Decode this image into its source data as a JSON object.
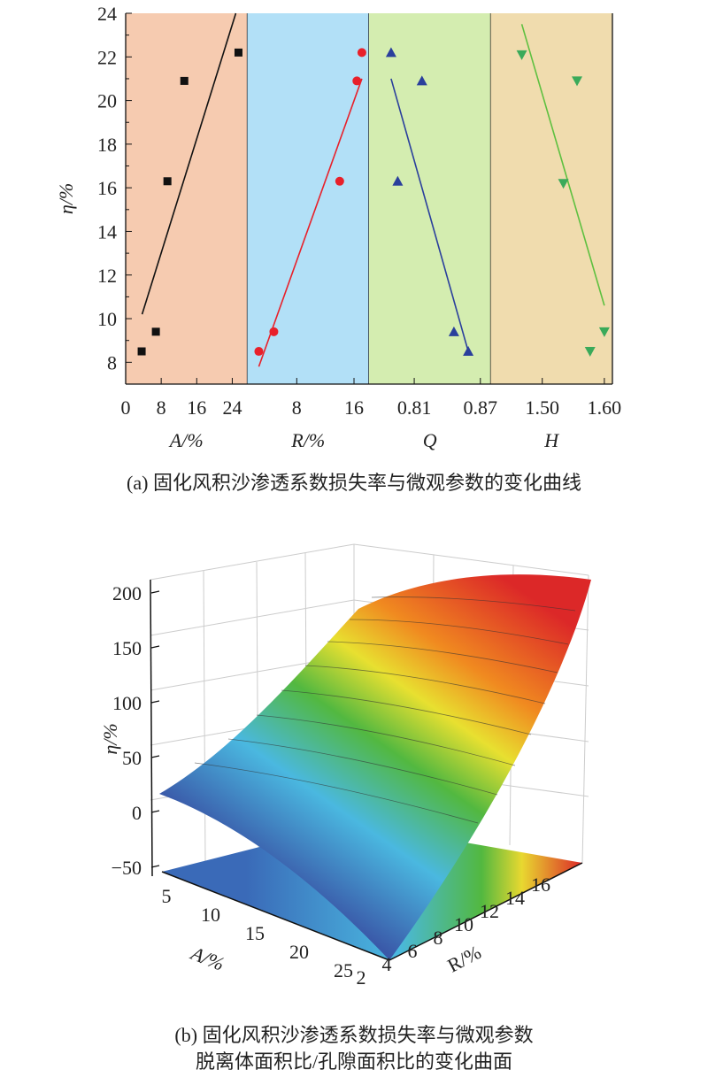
{
  "chart_data": [
    {
      "type": "scatter",
      "caption": "(a)  固化风积沙渗透系数损失率与微观参数的变化曲线",
      "ylabel": "η/%",
      "ylim": [
        7,
        24
      ],
      "yticks": [
        8,
        10,
        12,
        14,
        16,
        18,
        20,
        22,
        24
      ],
      "panels": [
        {
          "xlabel": "A/%",
          "xlim": [
            0,
            27.4
          ],
          "xticks": [
            "0",
            "8",
            "16",
            "24"
          ],
          "xtick_values": [
            0,
            8,
            16,
            24
          ],
          "color": "#111111",
          "marker": "square",
          "background": "#f6cbb0",
          "points": [
            [
              3.6,
              8.5
            ],
            [
              6.8,
              9.4
            ],
            [
              9.4,
              16.3
            ],
            [
              13.2,
              20.9
            ],
            [
              25.4,
              22.2
            ]
          ],
          "fit": [
            [
              3.7,
              10.2
            ],
            [
              24.8,
              24.0
            ]
          ]
        },
        {
          "xlabel": "R/%",
          "xlim": [
            1.1,
            18.1
          ],
          "xticks": [
            "8",
            "16"
          ],
          "xtick_values": [
            8,
            16
          ],
          "color": "#e8202a",
          "marker": "circle",
          "background": "#b2e0f7",
          "points": [
            [
              2.7,
              8.5
            ],
            [
              4.8,
              9.4
            ],
            [
              14.0,
              16.3
            ],
            [
              16.4,
              20.9
            ],
            [
              17.1,
              22.2
            ]
          ],
          "fit": [
            [
              2.7,
              7.8
            ],
            [
              17.1,
              21.0
            ]
          ]
        },
        {
          "xlabel": "Q",
          "xlim": [
            0.769,
            0.8794
          ],
          "xticks": [
            "0.81",
            "0.87"
          ],
          "xtick_values": [
            0.81,
            0.87
          ],
          "color": "#2a3f9c",
          "marker": "triangle-up",
          "background": "#d4edb0",
          "points": [
            [
              0.789,
              22.2
            ],
            [
              0.795,
              16.3
            ],
            [
              0.817,
              20.9
            ],
            [
              0.846,
              9.4
            ],
            [
              0.859,
              8.5
            ]
          ],
          "fit": [
            [
              0.789,
              21.0
            ],
            [
              0.859,
              8.5
            ]
          ]
        },
        {
          "xlabel": "H",
          "xlim": [
            1.417,
            1.613
          ],
          "xticks": [
            "1.50",
            "1.60"
          ],
          "xtick_values": [
            1.5,
            1.6
          ],
          "color": "#3aaa5a",
          "marker": "triangle-down",
          "background": "#f0dcae",
          "fit_color": "#5ec040",
          "points": [
            [
              1.467,
              22.1
            ],
            [
              1.534,
              16.2
            ],
            [
              1.556,
              20.9
            ],
            [
              1.577,
              8.5
            ],
            [
              1.6,
              9.4
            ]
          ],
          "fit": [
            [
              1.467,
              23.5
            ],
            [
              1.6,
              10.6
            ]
          ]
        }
      ]
    },
    {
      "type": "surface",
      "caption_line1": "(b)  固化风积沙渗透系数损失率与微观参数",
      "caption_line2": "脱离体面积比/孔隙面积比的变化曲面",
      "zlabel": "η/%",
      "xlabel": "A/%",
      "ylabel": "R/%",
      "zticks": [
        "200",
        "150",
        "100",
        "50",
        "0",
        "−50"
      ],
      "xticks": [
        "5",
        "10",
        "15",
        "20",
        "25"
      ],
      "yticks": [
        "2",
        "4",
        "6",
        "8",
        "10",
        "12",
        "14",
        "16"
      ],
      "zlim": [
        -60,
        210
      ],
      "colormap": [
        "#5a3a9a",
        "#3a58a8",
        "#4ab8e0",
        "#52b840",
        "#e8e030",
        "#f08a20",
        "#dc2828"
      ]
    }
  ]
}
